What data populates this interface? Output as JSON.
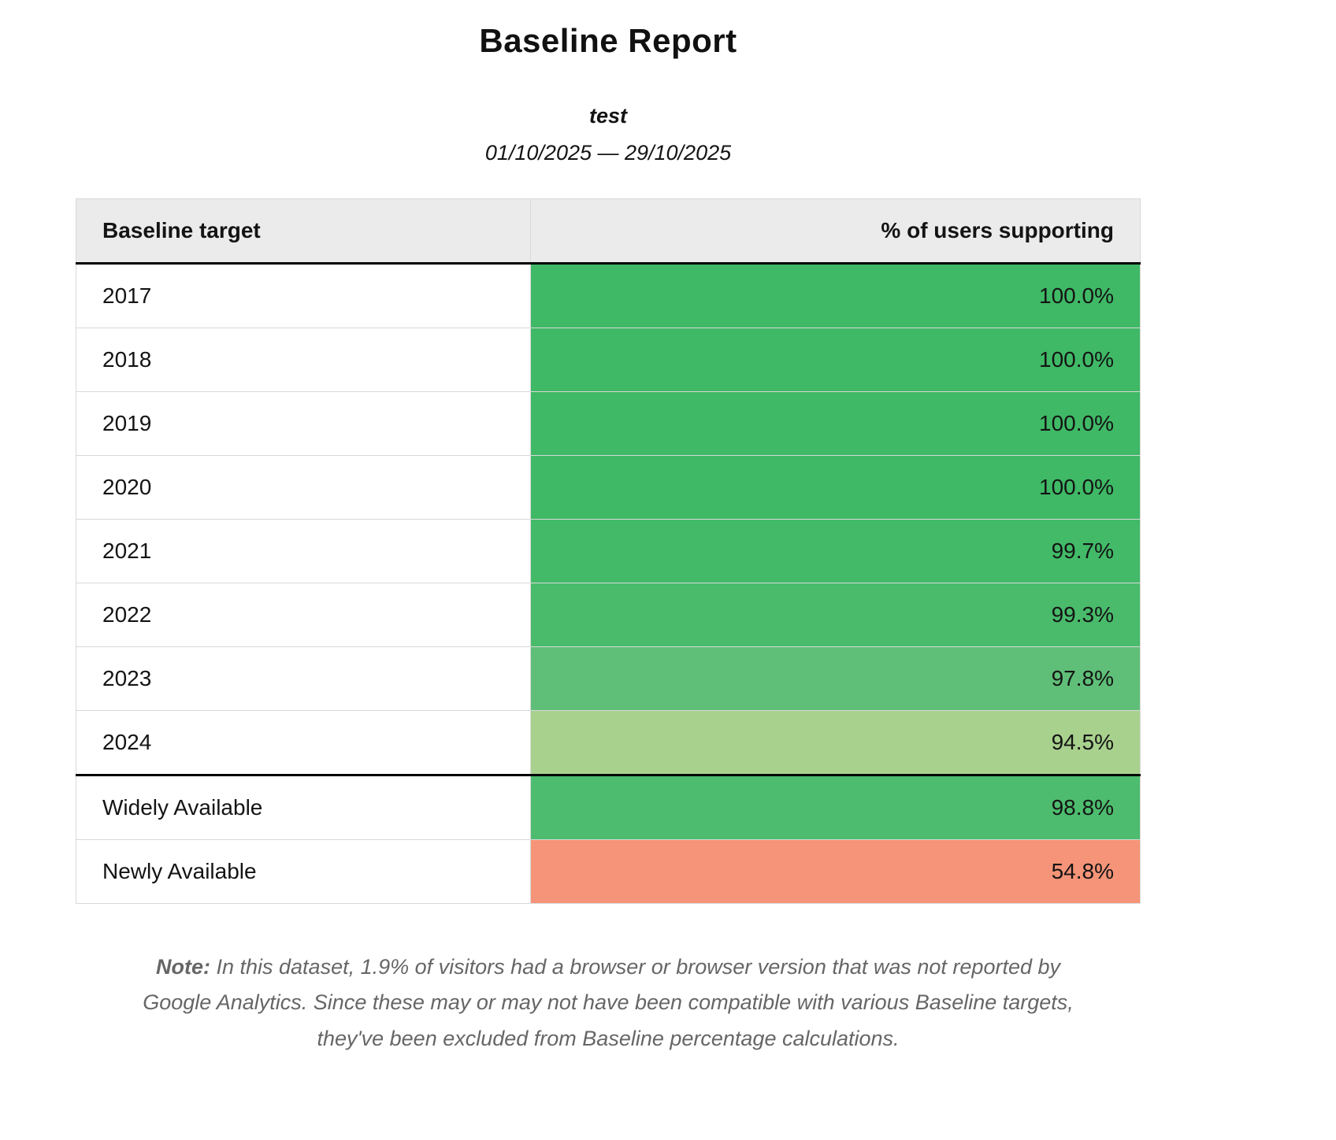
{
  "report": {
    "title": "Baseline Report",
    "subtitle": "test",
    "date_range": "01/10/2025 — 29/10/2025"
  },
  "table": {
    "headers": {
      "target": "Baseline target",
      "support": "% of users supporting"
    },
    "rows": [
      {
        "label": "2017",
        "value": "100.0%",
        "color": "#3fb966"
      },
      {
        "label": "2018",
        "value": "100.0%",
        "color": "#3fb966"
      },
      {
        "label": "2019",
        "value": "100.0%",
        "color": "#3fb966"
      },
      {
        "label": "2020",
        "value": "100.0%",
        "color": "#3fb966"
      },
      {
        "label": "2021",
        "value": "99.7%",
        "color": "#42ba68"
      },
      {
        "label": "2022",
        "value": "99.3%",
        "color": "#49bb6b"
      },
      {
        "label": "2023",
        "value": "97.8%",
        "color": "#5fbf78"
      },
      {
        "label": "2024",
        "value": "94.5%",
        "color": "#a8d18e"
      },
      {
        "label": "Widely Available",
        "value": "98.8%",
        "color": "#4dbc6e",
        "divider_before": true
      },
      {
        "label": "Newly Available",
        "value": "54.8%",
        "color": "#f59478"
      }
    ]
  },
  "note": {
    "label": "Note:",
    "text": " In this dataset, 1.9% of visitors had a browser or browser version that was not reported by Google Analytics. Since these may or may not have been compatible with various Baseline targets, they've been excluded from Baseline percentage calculations."
  },
  "colors": {
    "header_background": "#ebebeb",
    "section_divider": "#000000",
    "grid_line": "#d9d9d9",
    "note_text": "#666666"
  }
}
